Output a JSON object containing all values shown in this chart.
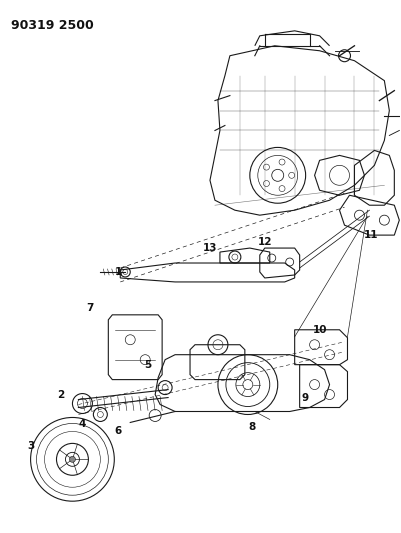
{
  "title": "90319 2500",
  "bg_color": "#ffffff",
  "line_color": "#1a1a1a",
  "label_color": "#111111",
  "figsize": [
    4.01,
    5.33
  ],
  "dpi": 100
}
